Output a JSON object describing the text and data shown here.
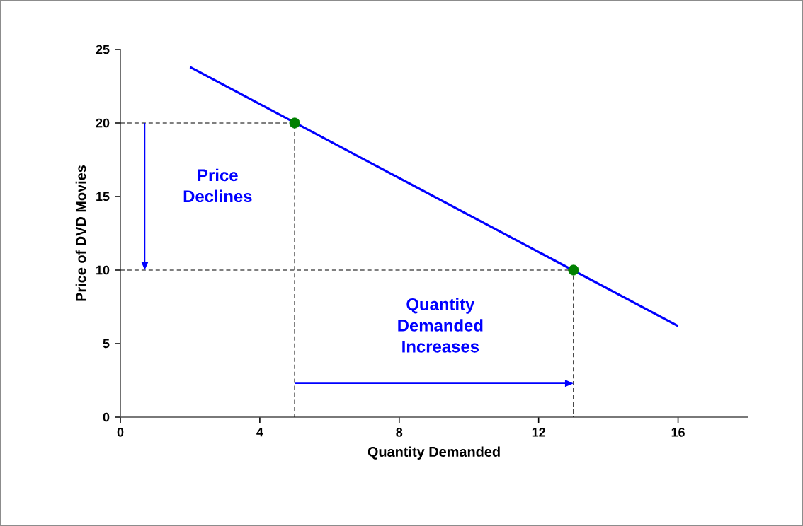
{
  "chart_data": {
    "type": "line",
    "xlabel": "Quantity Demanded",
    "ylabel": "Price of DVD Movies",
    "xlim": [
      0,
      18
    ],
    "xticks": [
      0,
      4,
      8,
      12,
      16
    ],
    "ylim": [
      0,
      25
    ],
    "yticks": [
      0,
      5,
      10,
      15,
      20,
      25
    ],
    "grid": false,
    "series": [
      {
        "color": "#0000ff",
        "x": [
          2,
          16
        ],
        "values": [
          23.8,
          6.2
        ]
      },
      {
        "type": "line",
        "color": "#000000",
        "line_style": "dashed",
        "x": [
          0,
          5,
          5
        ],
        "values": [
          20,
          20,
          0
        ]
      },
      {
        "type": "line",
        "color": "#000000",
        "line_style": "dashed",
        "x": [
          0,
          13,
          13
        ],
        "values": [
          10,
          10,
          0
        ]
      },
      {
        "type": "scatter",
        "color": "#008000",
        "marker": "circle",
        "x": [
          5,
          13
        ],
        "values": [
          20,
          10
        ]
      }
    ],
    "annotations": [
      "Price Declines",
      "Quantity Demanded Increases"
    ]
  }
}
